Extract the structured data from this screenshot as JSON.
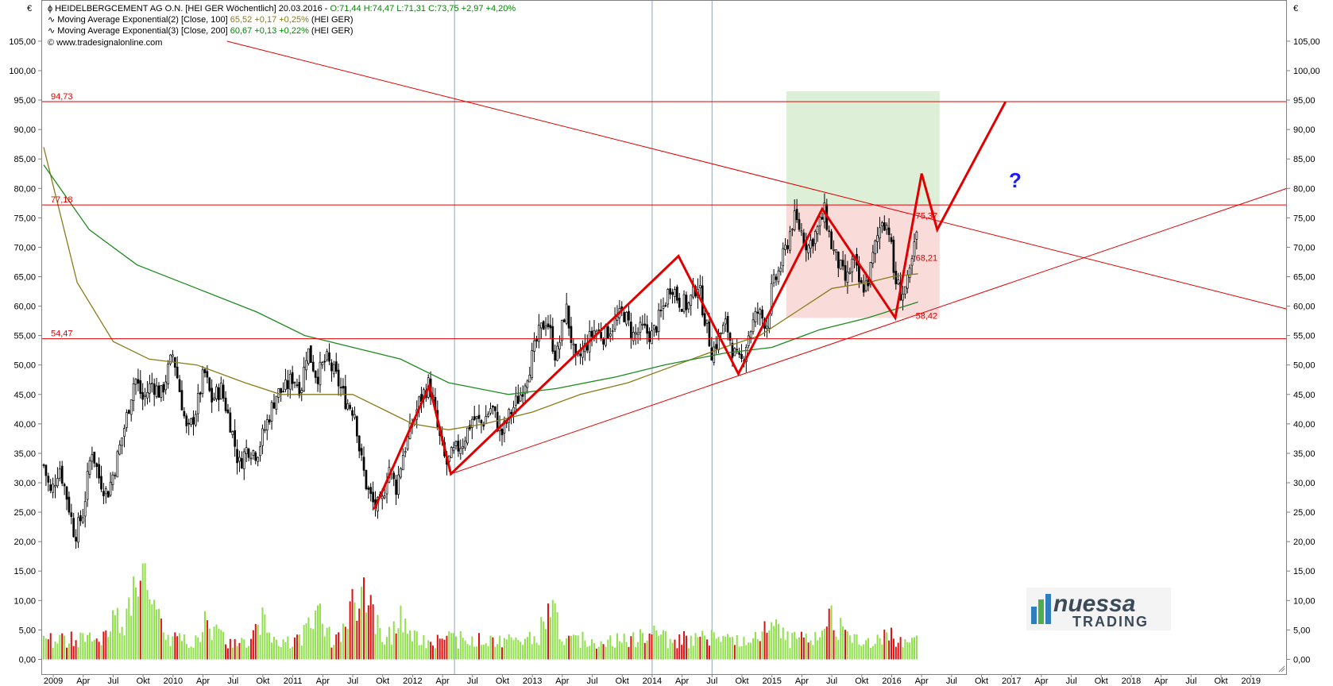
{
  "header": {
    "currency_left": "€",
    "currency_right": "€",
    "line1": {
      "symbol_text": "HEIDELBERGCEMENT AG O.N. [HEI GER  Wöchentlich] 20.03.2016 - ",
      "ohlc_text": "O:71,44 H:74,47 L:71,31 ",
      "change_text": "C:73,75 +2,97 +4,20%"
    },
    "line2": {
      "name_text": "Moving Average Exponential(2) [Close, 100] ",
      "value_text": "65,52 +0,17 +0,25%",
      "suffix_text": " (HEI GER)"
    },
    "line3": {
      "name_text": "Moving Average Exponential(3) [Close, 200] ",
      "value_text": "60,67 +0,13 +0,22%",
      "suffix_text": " (HEI GER)"
    },
    "line4": {
      "text": "www.tradesignalonline.com"
    }
  },
  "logo": {
    "line1": "nuessa",
    "line2": "TRADING"
  },
  "question_mark": "?",
  "colors": {
    "up_candle": "#ffffff",
    "down_candle": "#000000",
    "vol_up": "#8fe04a",
    "vol_down": "#dd1111",
    "ema100": "#8a7a1a",
    "ema200": "#1e8a1e",
    "trendline": "#e00000",
    "zone_green": "#d7ecd0",
    "zone_red": "#f8d6d2",
    "vline": "#8fa6b8"
  },
  "chart_data": {
    "type": "candlestick",
    "title": "HEIDELBERGCEMENT AG O.N. [HEI GER Wöchentlich]",
    "y_axis": {
      "ylim": [
        -2.5,
        112
      ],
      "ticks": [
        "0,00",
        "5,00",
        "10,00",
        "15,00",
        "20,00",
        "25,00",
        "30,00",
        "35,00",
        "40,00",
        "45,00",
        "50,00",
        "55,00",
        "60,00",
        "65,00",
        "70,00",
        "75,00",
        "80,00",
        "85,00",
        "90,00",
        "95,00",
        "100,00",
        "105,00"
      ]
    },
    "x_axis": {
      "range": [
        2008.9,
        2019.3
      ],
      "labels": [
        {
          "t": 2009.0,
          "text": "2009"
        },
        {
          "t": 2009.25,
          "text": "Apr"
        },
        {
          "t": 2009.5,
          "text": "Jul"
        },
        {
          "t": 2009.75,
          "text": "Okt"
        },
        {
          "t": 2010.0,
          "text": "2010"
        },
        {
          "t": 2010.25,
          "text": "Apr"
        },
        {
          "t": 2010.5,
          "text": "Jul"
        },
        {
          "t": 2010.75,
          "text": "Okt"
        },
        {
          "t": 2011.0,
          "text": "2011"
        },
        {
          "t": 2011.25,
          "text": "Apr"
        },
        {
          "t": 2011.5,
          "text": "Jul"
        },
        {
          "t": 2011.75,
          "text": "Okt"
        },
        {
          "t": 2012.0,
          "text": "2012"
        },
        {
          "t": 2012.25,
          "text": "Apr"
        },
        {
          "t": 2012.5,
          "text": "Jul"
        },
        {
          "t": 2012.75,
          "text": "Okt"
        },
        {
          "t": 2013.0,
          "text": "2013"
        },
        {
          "t": 2013.25,
          "text": "Apr"
        },
        {
          "t": 2013.5,
          "text": "Jul"
        },
        {
          "t": 2013.75,
          "text": "Okt"
        },
        {
          "t": 2014.0,
          "text": "2014"
        },
        {
          "t": 2014.25,
          "text": "Apr"
        },
        {
          "t": 2014.5,
          "text": "Jul"
        },
        {
          "t": 2014.75,
          "text": "Okt"
        },
        {
          "t": 2015.0,
          "text": "2015"
        },
        {
          "t": 2015.25,
          "text": "Apr"
        },
        {
          "t": 2015.5,
          "text": "Jul"
        },
        {
          "t": 2015.75,
          "text": "Okt"
        },
        {
          "t": 2016.0,
          "text": "2016"
        },
        {
          "t": 2016.25,
          "text": "Apr"
        },
        {
          "t": 2016.5,
          "text": "Jul"
        },
        {
          "t": 2016.75,
          "text": "Okt"
        },
        {
          "t": 2017.0,
          "text": "2017"
        },
        {
          "t": 2017.25,
          "text": "Apr"
        },
        {
          "t": 2017.5,
          "text": "Jul"
        },
        {
          "t": 2017.75,
          "text": "Okt"
        },
        {
          "t": 2018.0,
          "text": "2018"
        },
        {
          "t": 2018.25,
          "text": "Apr"
        },
        {
          "t": 2018.5,
          "text": "Jul"
        },
        {
          "t": 2018.75,
          "text": "Okt"
        },
        {
          "t": 2019.0,
          "text": "2019"
        }
      ]
    },
    "price_path": [
      [
        2008.92,
        33
      ],
      [
        2008.98,
        28
      ],
      [
        2009.05,
        33
      ],
      [
        2009.12,
        27
      ],
      [
        2009.18,
        21
      ],
      [
        2009.25,
        25
      ],
      [
        2009.32,
        36
      ],
      [
        2009.38,
        31
      ],
      [
        2009.45,
        28
      ],
      [
        2009.52,
        33
      ],
      [
        2009.6,
        40
      ],
      [
        2009.68,
        48
      ],
      [
        2009.75,
        44
      ],
      [
        2009.82,
        47
      ],
      [
        2009.9,
        45
      ],
      [
        2010.0,
        52
      ],
      [
        2010.07,
        44
      ],
      [
        2010.12,
        38
      ],
      [
        2010.2,
        43
      ],
      [
        2010.26,
        49
      ],
      [
        2010.32,
        44
      ],
      [
        2010.4,
        46
      ],
      [
        2010.48,
        40
      ],
      [
        2010.55,
        33
      ],
      [
        2010.62,
        36
      ],
      [
        2010.7,
        35
      ],
      [
        2010.78,
        40
      ],
      [
        2010.86,
        45
      ],
      [
        2010.94,
        46
      ],
      [
        2011.0,
        48
      ],
      [
        2011.07,
        46
      ],
      [
        2011.12,
        53
      ],
      [
        2011.2,
        48
      ],
      [
        2011.28,
        51
      ],
      [
        2011.36,
        48
      ],
      [
        2011.44,
        44
      ],
      [
        2011.52,
        42
      ],
      [
        2011.56,
        35
      ],
      [
        2011.62,
        29
      ],
      [
        2011.68,
        26
      ],
      [
        2011.74,
        26
      ],
      [
        2011.8,
        33
      ],
      [
        2011.86,
        29
      ],
      [
        2011.92,
        35
      ],
      [
        2012.0,
        40
      ],
      [
        2012.06,
        44
      ],
      [
        2012.14,
        47
      ],
      [
        2012.22,
        38
      ],
      [
        2012.28,
        33
      ],
      [
        2012.34,
        35
      ],
      [
        2012.42,
        37
      ],
      [
        2012.5,
        41
      ],
      [
        2012.58,
        40
      ],
      [
        2012.66,
        43
      ],
      [
        2012.74,
        38
      ],
      [
        2012.82,
        42
      ],
      [
        2012.9,
        45
      ],
      [
        2012.98,
        50
      ],
      [
        2013.05,
        55
      ],
      [
        2013.12,
        58
      ],
      [
        2013.2,
        51
      ],
      [
        2013.28,
        60
      ],
      [
        2013.36,
        50
      ],
      [
        2013.44,
        53
      ],
      [
        2013.52,
        56
      ],
      [
        2013.6,
        55
      ],
      [
        2013.68,
        57
      ],
      [
        2013.76,
        59
      ],
      [
        2013.84,
        55
      ],
      [
        2013.92,
        56
      ],
      [
        2014.0,
        55
      ],
      [
        2014.08,
        59
      ],
      [
        2014.16,
        64
      ],
      [
        2014.22,
        61
      ],
      [
        2014.3,
        60
      ],
      [
        2014.38,
        64
      ],
      [
        2014.44,
        58
      ],
      [
        2014.5,
        52
      ],
      [
        2014.56,
        55
      ],
      [
        2014.62,
        57
      ],
      [
        2014.68,
        52
      ],
      [
        2014.74,
        50
      ],
      [
        2014.8,
        55
      ],
      [
        2014.88,
        59
      ],
      [
        2014.96,
        57
      ],
      [
        2015.0,
        63
      ],
      [
        2015.06,
        66
      ],
      [
        2015.12,
        70
      ],
      [
        2015.18,
        75
      ],
      [
        2015.24,
        73
      ],
      [
        2015.3,
        70
      ],
      [
        2015.38,
        73
      ],
      [
        2015.44,
        76
      ],
      [
        2015.5,
        70
      ],
      [
        2015.56,
        67
      ],
      [
        2015.62,
        64
      ],
      [
        2015.68,
        68
      ],
      [
        2015.74,
        63
      ],
      [
        2015.8,
        64
      ],
      [
        2015.86,
        70
      ],
      [
        2015.92,
        75
      ],
      [
        2015.98,
        73
      ],
      [
        2016.02,
        65
      ],
      [
        2016.08,
        62
      ],
      [
        2016.14,
        64
      ],
      [
        2016.2,
        71
      ],
      [
        2016.22,
        74
      ]
    ],
    "series": [
      {
        "name": "Moving Average Exponential(2) [Close, 100]",
        "values": [
          [
            2008.92,
            87
          ],
          [
            2009.2,
            64
          ],
          [
            2009.5,
            54
          ],
          [
            2009.8,
            51
          ],
          [
            2010.2,
            50
          ],
          [
            2010.6,
            47
          ],
          [
            2010.9,
            45
          ],
          [
            2011.2,
            45
          ],
          [
            2011.5,
            45
          ],
          [
            2011.8,
            42
          ],
          [
            2012.0,
            40
          ],
          [
            2012.3,
            39
          ],
          [
            2012.6,
            40
          ],
          [
            2013.0,
            42
          ],
          [
            2013.4,
            45
          ],
          [
            2013.8,
            47
          ],
          [
            2014.2,
            50
          ],
          [
            2014.6,
            53
          ],
          [
            2014.9,
            55
          ],
          [
            2015.2,
            59
          ],
          [
            2015.5,
            63
          ],
          [
            2015.8,
            64
          ],
          [
            2016.0,
            65
          ],
          [
            2016.22,
            65.5
          ]
        ]
      },
      {
        "name": "Moving Average Exponential(3) [Close, 200]",
        "values": [
          [
            2008.92,
            84
          ],
          [
            2009.3,
            73
          ],
          [
            2009.7,
            67
          ],
          [
            2010.2,
            63
          ],
          [
            2010.7,
            59
          ],
          [
            2011.1,
            55
          ],
          [
            2011.5,
            53
          ],
          [
            2011.9,
            51
          ],
          [
            2012.3,
            47
          ],
          [
            2012.8,
            45
          ],
          [
            2013.2,
            46
          ],
          [
            2013.7,
            48
          ],
          [
            2014.1,
            50
          ],
          [
            2014.6,
            52
          ],
          [
            2015.0,
            53
          ],
          [
            2015.4,
            56
          ],
          [
            2015.8,
            58
          ],
          [
            2016.22,
            60.7
          ]
        ]
      }
    ],
    "volume": [
      [
        2009.55,
        10
      ],
      [
        2009.7,
        21
      ],
      [
        2009.78,
        17
      ],
      [
        2009.82,
        14
      ],
      [
        2010.3,
        8
      ],
      [
        2010.75,
        9
      ],
      [
        2011.2,
        13
      ],
      [
        2011.5,
        11
      ],
      [
        2011.62,
        15
      ],
      [
        2011.9,
        8
      ],
      [
        2013.15,
        10
      ],
      [
        2014.0,
        6
      ],
      [
        2014.5,
        5
      ],
      [
        2015.0,
        7
      ],
      [
        2015.5,
        10
      ],
      [
        2016.0,
        5
      ]
    ],
    "horizontal_levels": [
      {
        "value": 94.73,
        "label": "94,73"
      },
      {
        "value": 77.18,
        "label": "77,18"
      },
      {
        "value": 54.47,
        "label": "54,47"
      }
    ],
    "point_labels": [
      {
        "t": 2016.2,
        "value": 75.37,
        "label": "75,37"
      },
      {
        "t": 2016.2,
        "value": 68.21,
        "label": "68,21"
      },
      {
        "t": 2016.2,
        "value": 58.42,
        "label": "58,42"
      }
    ],
    "pattern_path": [
      [
        2011.68,
        25.5
      ],
      [
        2012.14,
        46.5
      ],
      [
        2012.32,
        31.5
      ],
      [
        2014.22,
        68.5
      ],
      [
        2014.72,
        48.5
      ],
      [
        2015.42,
        76.5
      ],
      [
        2016.03,
        58.0
      ],
      [
        2016.25,
        82.5
      ],
      [
        2016.38,
        73.0
      ],
      [
        2016.95,
        94.7
      ]
    ],
    "trendlines": [
      {
        "from": [
          2010.45,
          105
        ],
        "to": [
          2019.3,
          59.5
        ]
      },
      {
        "from": [
          2012.32,
          31.5
        ],
        "to": [
          2019.3,
          80
        ]
      }
    ],
    "vertical_lines": [
      2012.35,
      2014.0,
      2014.5
    ],
    "zones": [
      {
        "t0": 2015.12,
        "t1": 2016.4,
        "v0": 77.18,
        "v1": 96.5,
        "tone": "green"
      },
      {
        "t0": 2015.12,
        "t1": 2016.4,
        "v0": 58.0,
        "v1": 77.18,
        "tone": "red"
      }
    ]
  }
}
